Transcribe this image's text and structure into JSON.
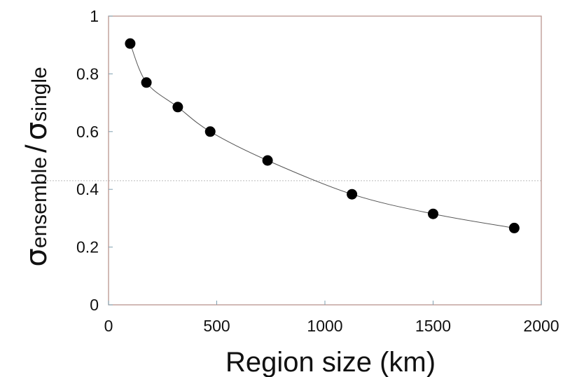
{
  "chart_data": {
    "type": "scatter",
    "title": "",
    "xlabel": "Region size (km)",
    "ylabel": {
      "sigma": "σ",
      "numerator_subscript": "ensemble",
      "separator": "/",
      "denominator_subscript": "single"
    },
    "xlim": [
      0,
      2000
    ],
    "ylim": [
      0,
      1
    ],
    "x_ticks": [
      0,
      500,
      1000,
      1500,
      2000
    ],
    "x_tick_labels": [
      "0",
      "500",
      "1000",
      "1500",
      "2000"
    ],
    "y_ticks": [
      0,
      0.2,
      0.4,
      0.6,
      0.8,
      1
    ],
    "y_tick_labels": [
      "0",
      "0.2",
      "0.4",
      "0.6",
      "0.8",
      "1"
    ],
    "grid": false,
    "connecting_line": true,
    "reference_line_y": 0.43,
    "series": [
      {
        "points": [
          {
            "x": 100,
            "y": 0.905
          },
          {
            "x": 175,
            "y": 0.77
          },
          {
            "x": 320,
            "y": 0.685
          },
          {
            "x": 470,
            "y": 0.6
          },
          {
            "x": 735,
            "y": 0.5
          },
          {
            "x": 1125,
            "y": 0.383
          },
          {
            "x": 1500,
            "y": 0.315
          },
          {
            "x": 1875,
            "y": 0.266
          }
        ]
      }
    ],
    "colors": {
      "frame": "#b9958f",
      "marker": "#000000",
      "line": "#555555",
      "reference_line": "#bbbbbb"
    }
  }
}
